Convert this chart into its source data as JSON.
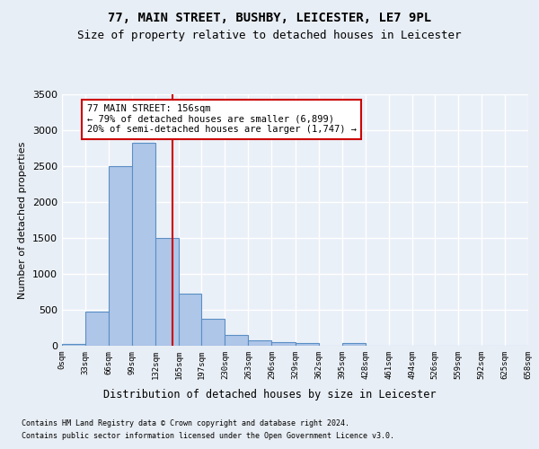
{
  "title1": "77, MAIN STREET, BUSHBY, LEICESTER, LE7 9PL",
  "title2": "Size of property relative to detached houses in Leicester",
  "xlabel": "Distribution of detached houses by size in Leicester",
  "ylabel": "Number of detached properties",
  "bins": [
    0,
    33,
    66,
    99,
    132,
    165,
    197,
    230,
    263,
    296,
    329,
    362,
    395,
    428,
    461,
    494,
    526,
    559,
    592,
    625,
    658
  ],
  "bar_heights": [
    20,
    470,
    2500,
    2820,
    1500,
    730,
    380,
    150,
    75,
    55,
    40,
    0,
    40,
    0,
    0,
    0,
    0,
    0,
    0,
    0
  ],
  "bar_color": "#aec6e8",
  "bar_edge_color": "#5a8fc4",
  "bar_linewidth": 0.8,
  "vline_x": 156,
  "vline_color": "#cc0000",
  "vline_lw": 1.5,
  "annotation_text": "77 MAIN STREET: 156sqm\n← 79% of detached houses are smaller (6,899)\n20% of semi-detached houses are larger (1,747) →",
  "annotation_fontsize": 7.5,
  "annotation_box_color": "#ffffff",
  "annotation_edge_color": "#cc0000",
  "ylim": [
    0,
    3500
  ],
  "yticks": [
    0,
    500,
    1000,
    1500,
    2000,
    2500,
    3000,
    3500
  ],
  "background_color": "#e8eef5",
  "plot_bg_color": "#eaf0f8",
  "grid_color": "#ffffff",
  "title1_fontsize": 10,
  "title2_fontsize": 9,
  "tick_labels": [
    "0sqm",
    "33sqm",
    "66sqm",
    "99sqm",
    "132sqm",
    "165sqm",
    "197sqm",
    "230sqm",
    "263sqm",
    "296sqm",
    "329sqm",
    "362sqm",
    "395sqm",
    "428sqm",
    "461sqm",
    "494sqm",
    "526sqm",
    "559sqm",
    "592sqm",
    "625sqm",
    "658sqm"
  ],
  "footer1": "Contains HM Land Registry data © Crown copyright and database right 2024.",
  "footer2": "Contains public sector information licensed under the Open Government Licence v3.0."
}
